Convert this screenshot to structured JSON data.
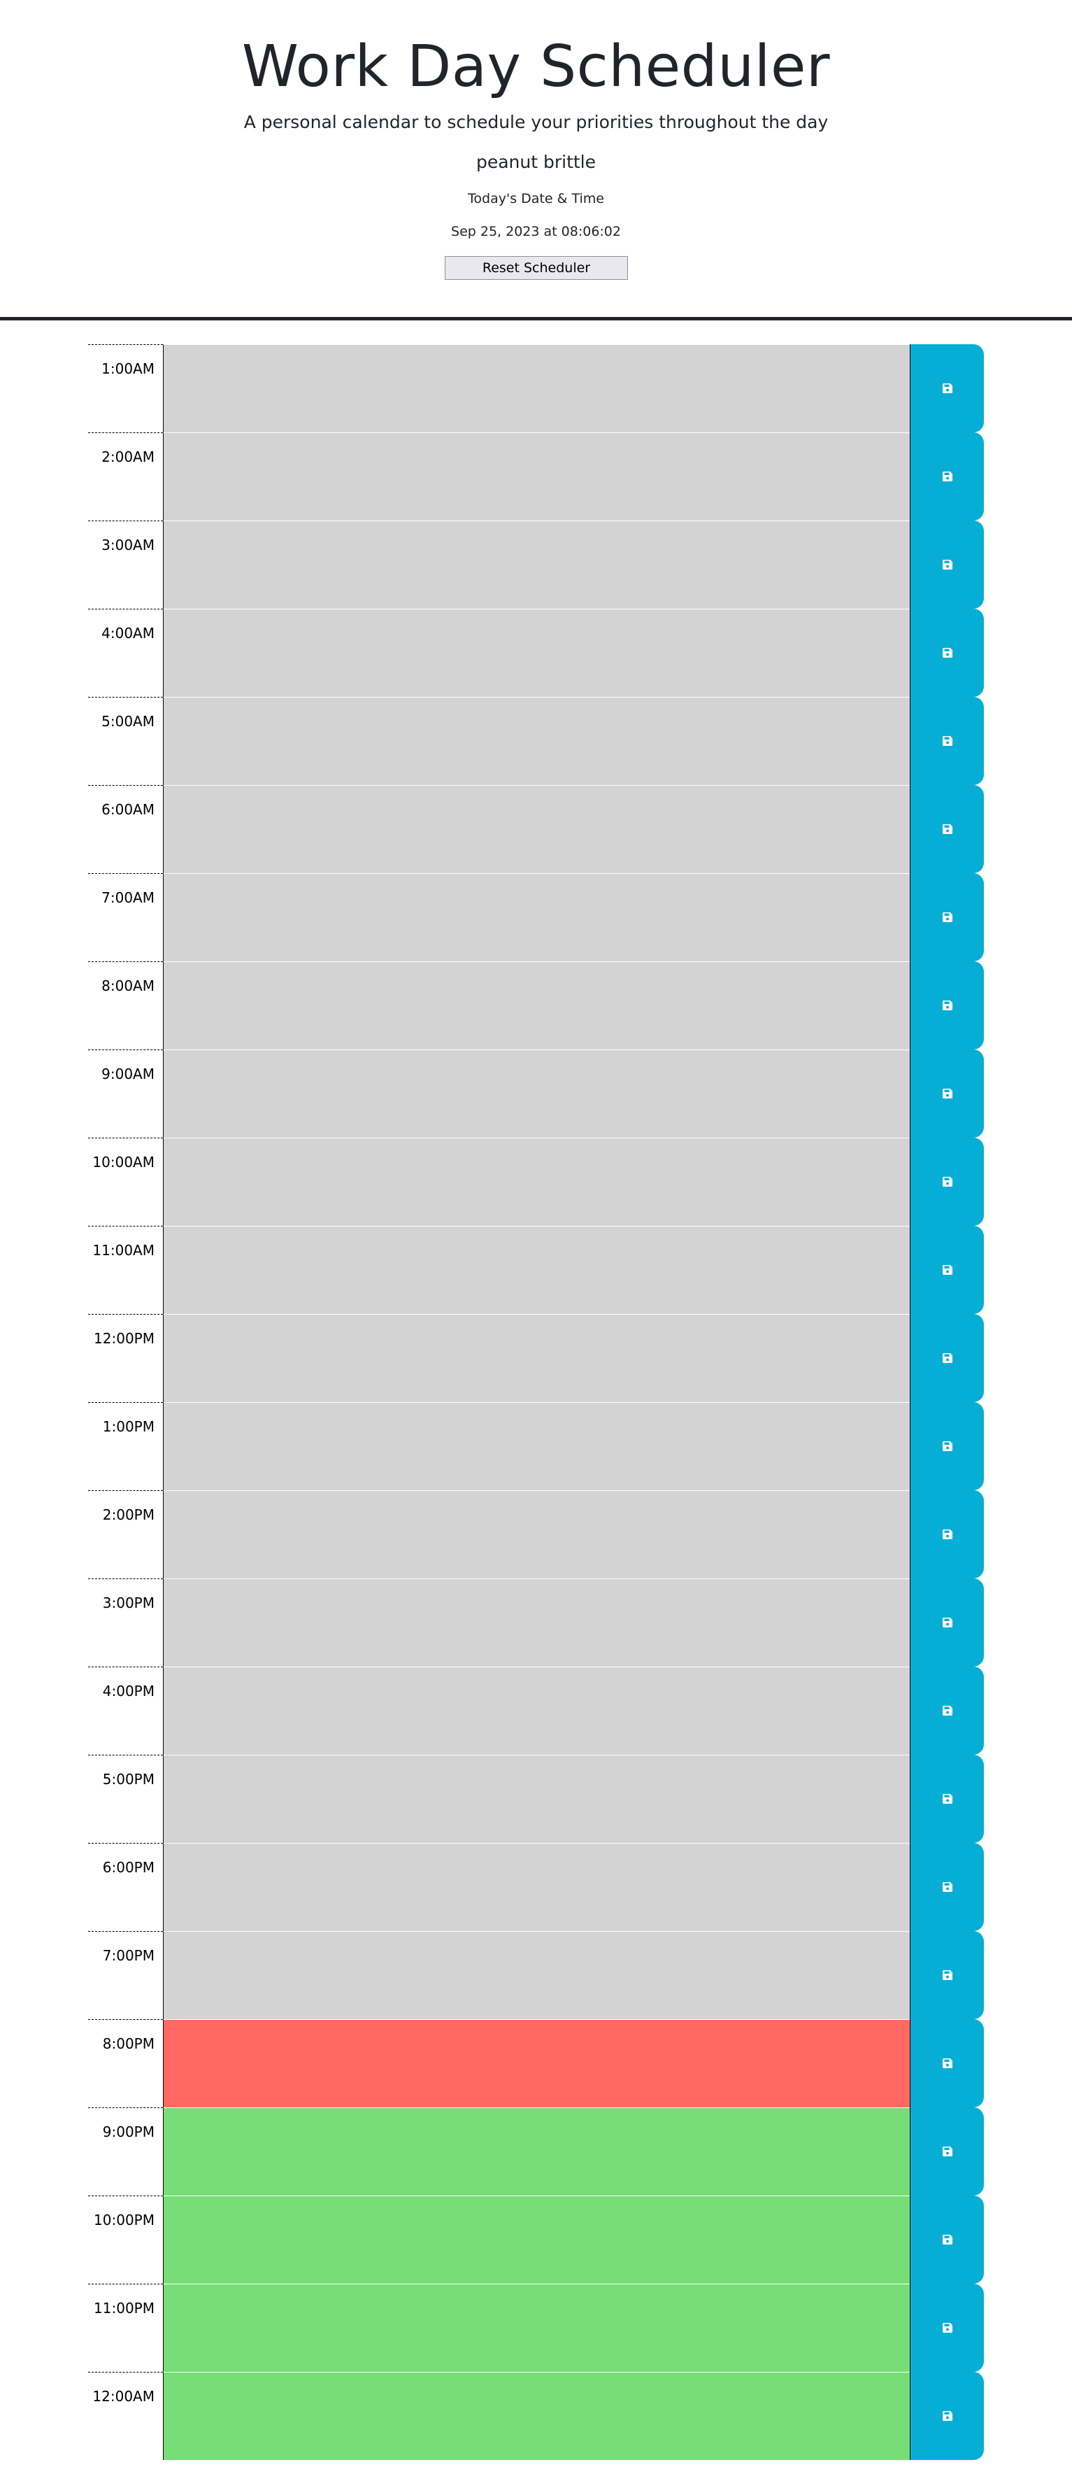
{
  "header": {
    "title": "Work Day Scheduler",
    "subtitle": "A personal calendar to schedule your priorities throughout the day",
    "flavor": "peanut brittle",
    "date_label": "Today's Date & Time",
    "date_value": "Sep 25, 2023 at 08:06:02",
    "reset_label": "Reset Scheduler"
  },
  "colors": {
    "past": "#d3d3d3",
    "present": "#ff6961",
    "future": "#77dd77",
    "save_button": "#06aed5"
  },
  "save_icon": "floppy-disk-icon",
  "hours": [
    {
      "label": "1:00AM",
      "state": "past",
      "text": ""
    },
    {
      "label": "2:00AM",
      "state": "past",
      "text": ""
    },
    {
      "label": "3:00AM",
      "state": "past",
      "text": ""
    },
    {
      "label": "4:00AM",
      "state": "past",
      "text": ""
    },
    {
      "label": "5:00AM",
      "state": "past",
      "text": ""
    },
    {
      "label": "6:00AM",
      "state": "past",
      "text": ""
    },
    {
      "label": "7:00AM",
      "state": "past",
      "text": ""
    },
    {
      "label": "8:00AM",
      "state": "past",
      "text": ""
    },
    {
      "label": "9:00AM",
      "state": "past",
      "text": ""
    },
    {
      "label": "10:00AM",
      "state": "past",
      "text": ""
    },
    {
      "label": "11:00AM",
      "state": "past",
      "text": ""
    },
    {
      "label": "12:00PM",
      "state": "past",
      "text": ""
    },
    {
      "label": "1:00PM",
      "state": "past",
      "text": ""
    },
    {
      "label": "2:00PM",
      "state": "past",
      "text": ""
    },
    {
      "label": "3:00PM",
      "state": "past",
      "text": ""
    },
    {
      "label": "4:00PM",
      "state": "past",
      "text": ""
    },
    {
      "label": "5:00PM",
      "state": "past",
      "text": ""
    },
    {
      "label": "6:00PM",
      "state": "past",
      "text": ""
    },
    {
      "label": "7:00PM",
      "state": "past",
      "text": ""
    },
    {
      "label": "8:00PM",
      "state": "present",
      "text": ""
    },
    {
      "label": "9:00PM",
      "state": "future",
      "text": ""
    },
    {
      "label": "10:00PM",
      "state": "future",
      "text": ""
    },
    {
      "label": "11:00PM",
      "state": "future",
      "text": ""
    },
    {
      "label": "12:00AM",
      "state": "future",
      "text": ""
    }
  ]
}
